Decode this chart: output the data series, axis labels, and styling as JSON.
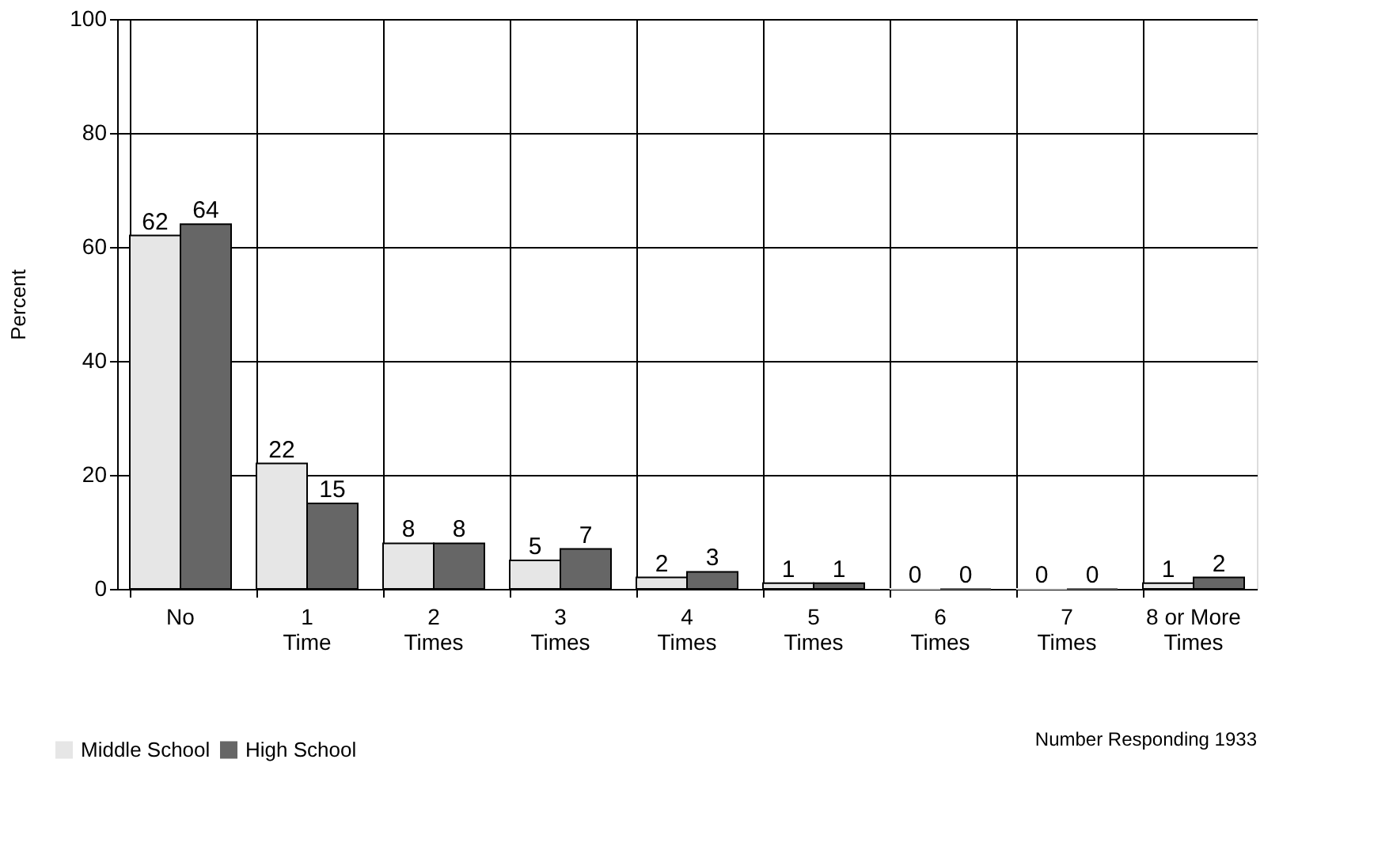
{
  "chart_data": {
    "type": "bar",
    "ylabel": "Percent",
    "categories": [
      "No",
      "1\nTime",
      "2\nTimes",
      "3\nTimes",
      "4\nTimes",
      "5\nTimes",
      "6\nTimes",
      "7\nTimes",
      "8 or More\nTimes"
    ],
    "series": [
      {
        "name": "Middle School",
        "color": "#e6e6e6",
        "values": [
          62,
          22,
          8,
          5,
          2,
          1,
          0,
          0,
          1
        ]
      },
      {
        "name": "High School",
        "color": "#666666",
        "values": [
          64,
          15,
          8,
          7,
          3,
          1,
          0,
          0,
          2
        ]
      }
    ],
    "ylim": [
      0,
      100
    ],
    "yticks": [
      0,
      20,
      40,
      60,
      80,
      100
    ],
    "grid": true,
    "legend": "bottom left",
    "data_labels": true,
    "annotations": [
      "Number Responding 1933"
    ]
  }
}
